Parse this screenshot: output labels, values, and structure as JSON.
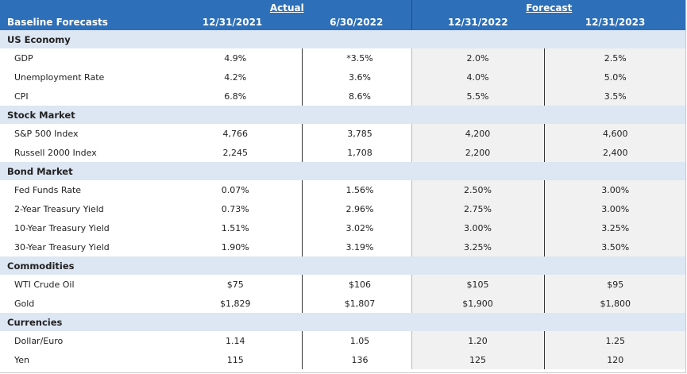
{
  "header": {
    "title": "Baseline Forecasts",
    "actual_label": "Actual",
    "forecast_label": "Forecast",
    "columns": [
      "12/31/2021",
      "6/30/2022",
      "12/31/2022",
      "12/31/2023"
    ]
  },
  "colors": {
    "header_bg": "#2d6fb8",
    "section_bg": "#dde6f3",
    "forecast_bg": "#f1f1f1"
  },
  "sections": [
    {
      "name": "US Economy",
      "rows": [
        {
          "label": "GDP",
          "values": [
            "4.9%",
            "*3.5%",
            "2.0%",
            "2.5%"
          ]
        },
        {
          "label": "Unemployment Rate",
          "values": [
            "4.2%",
            "3.6%",
            "4.0%",
            "5.0%"
          ]
        },
        {
          "label": "CPI",
          "values": [
            "6.8%",
            "8.6%",
            "5.5%",
            "3.5%"
          ]
        }
      ]
    },
    {
      "name": "Stock Market",
      "rows": [
        {
          "label": "S&P 500 Index",
          "values": [
            "4,766",
            "3,785",
            "4,200",
            "4,600"
          ]
        },
        {
          "label": "Russell 2000 Index",
          "values": [
            "2,245",
            "1,708",
            "2,200",
            "2,400"
          ]
        }
      ]
    },
    {
      "name": "Bond Market",
      "rows": [
        {
          "label": "Fed Funds Rate",
          "values": [
            "0.07%",
            "1.56%",
            "2.50%",
            "3.00%"
          ]
        },
        {
          "label": "2-Year Treasury Yield",
          "values": [
            "0.73%",
            "2.96%",
            "2.75%",
            "3.00%"
          ]
        },
        {
          "label": "10-Year Treasury Yield",
          "values": [
            "1.51%",
            "3.02%",
            "3.00%",
            "3.25%"
          ]
        },
        {
          "label": "30-Year Treasury Yield",
          "values": [
            "1.90%",
            "3.19%",
            "3.25%",
            "3.50%"
          ]
        }
      ]
    },
    {
      "name": "Commodities",
      "rows": [
        {
          "label": "WTI Crude Oil",
          "values": [
            "$75",
            "$106",
            "$105",
            "$95"
          ]
        },
        {
          "label": "Gold",
          "values": [
            "$1,829",
            "$1,807",
            "$1,900",
            "$1,800"
          ]
        }
      ]
    },
    {
      "name": "Currencies",
      "rows": [
        {
          "label": "Dollar/Euro",
          "values": [
            "1.14",
            "1.05",
            "1.20",
            "1.25"
          ]
        },
        {
          "label": "Yen",
          "values": [
            "115",
            "136",
            "125",
            "120"
          ]
        }
      ]
    }
  ]
}
